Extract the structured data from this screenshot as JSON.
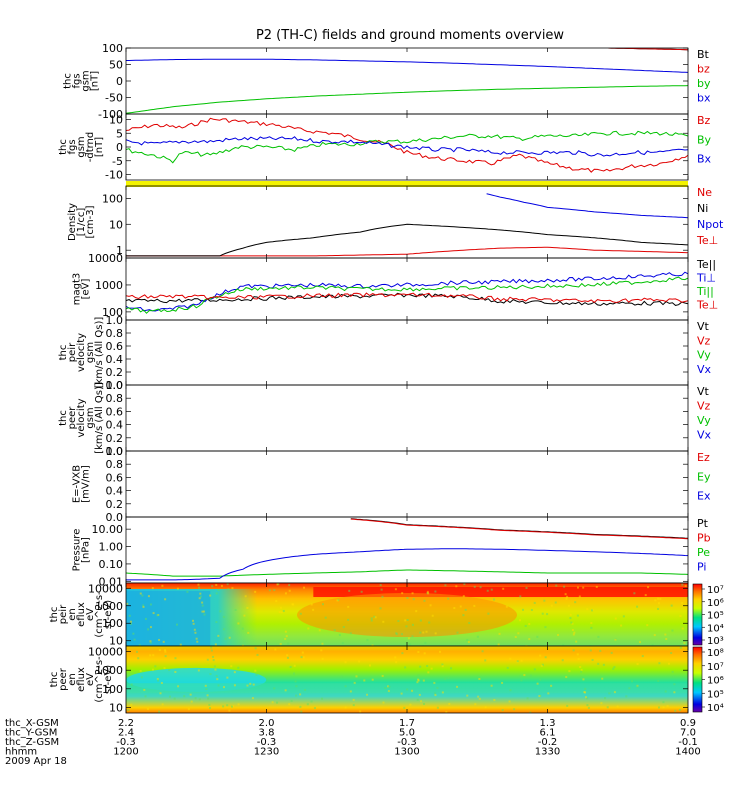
{
  "chart_data": {
    "type": "line",
    "title": "P2 (TH-C) fields and ground moments overview",
    "time_axis": {
      "rows": [
        {
          "label": "thc_X-GSM",
          "values": [
            "2.2",
            "2.0",
            "1.7",
            "1.3",
            "0.9"
          ]
        },
        {
          "label": "thc_Y-GSM",
          "values": [
            "2.4",
            "3.8",
            "5.0",
            "6.1",
            "7.0"
          ]
        },
        {
          "label": "thc_Z-GSM",
          "values": [
            "-0.3",
            "-0.3",
            "-0.3",
            "-0.2",
            "-0.1"
          ]
        },
        {
          "label": "hhmm",
          "values": [
            "1200",
            "1230",
            "1300",
            "1330",
            "1400"
          ]
        }
      ],
      "date": "2009 Apr 18"
    },
    "panels": [
      {
        "key": "fgs_gsm",
        "ylabel": [
          "thc",
          "fgs",
          "gsm",
          "[nT]"
        ],
        "ylim": [
          -100,
          100
        ],
        "log": false,
        "ticks": [
          "100",
          "50",
          "0",
          "-50",
          "-100"
        ],
        "tick_values": [
          100,
          50,
          0,
          -50,
          -100
        ],
        "series": [
          {
            "name": "Bt",
            "color": "#000000",
            "x": [
              1343,
              1353,
              1363,
              1373,
              1383,
              1393,
              1400
            ],
            "y": [
              100,
              97,
              94,
              91,
              89,
              87,
              86
            ]
          },
          {
            "name": "bz",
            "color": "#e00000",
            "x": [
              1343,
              1353,
              1363,
              1373,
              1383,
              1393,
              1400
            ],
            "y": [
              100,
              97,
              94,
              91,
              89,
              87,
              86
            ]
          },
          {
            "name": "by",
            "color": "#00c000",
            "x": [
              1200,
              1210,
              1220,
              1230,
              1240,
              1250,
              1300,
              1310,
              1320,
              1330,
              1340,
              1350,
              1400
            ],
            "y": [
              -98,
              -78,
              -64,
              -54,
              -46,
              -40,
              -34,
              -29,
              -25,
              -22,
              -19,
              -16,
              -14
            ]
          },
          {
            "name": "bx",
            "color": "#0000e0",
            "x": [
              1200,
              1210,
              1220,
              1230,
              1240,
              1250,
              1300,
              1310,
              1320,
              1330,
              1340,
              1350,
              1400
            ],
            "y": [
              62,
              65,
              66,
              66,
              64,
              61,
              58,
              54,
              49,
              44,
              38,
              32,
              26
            ]
          }
        ]
      },
      {
        "key": "fgs_gsm_dtrnd",
        "ylabel": [
          "thc",
          "fgs",
          "gsm",
          "-dtrnd",
          "[nT]"
        ],
        "ylim": [
          -12,
          12
        ],
        "log": false,
        "ticks": [
          "10",
          "5",
          "0",
          "-5",
          "-10"
        ],
        "tick_values": [
          10,
          5,
          0,
          -5,
          -10
        ],
        "series": [
          {
            "name": "Bz",
            "color": "#e00000",
            "x": [
              1200,
              1206,
              1212,
              1218,
              1220,
              1226,
              1232,
              1238,
              1244,
              1250,
              1256,
              1300,
              1306,
              1312,
              1318,
              1324,
              1330,
              1336,
              1342,
              1348,
              1354,
              1400
            ],
            "y": [
              6,
              8,
              7,
              10,
              10,
              9,
              8,
              6,
              5,
              3,
              1,
              -2,
              -4,
              -5,
              -6,
              -3,
              -6,
              -8,
              -9,
              -7,
              -6,
              -3
            ]
          },
          {
            "name": "By",
            "color": "#00c000",
            "x": [
              1200,
              1206,
              1210,
              1212,
              1218,
              1224,
              1230,
              1236,
              1242,
              1248,
              1254,
              1300,
              1306,
              1312,
              1318,
              1324,
              1330,
              1336,
              1342,
              1348,
              1354,
              1400
            ],
            "y": [
              -1,
              -3,
              -5,
              -2,
              -3,
              0,
              0,
              -1,
              1,
              1,
              2,
              2,
              3,
              4,
              4,
              3,
              4,
              4,
              5,
              5,
              5,
              4
            ]
          },
          {
            "name": "Bx",
            "color": "#0000e0",
            "x": [
              1200,
              1206,
              1212,
              1218,
              1224,
              1230,
              1236,
              1242,
              1248,
              1254,
              1300,
              1306,
              1312,
              1318,
              1324,
              1330,
              1336,
              1342,
              1348,
              1354,
              1400
            ],
            "y": [
              2,
              1,
              2,
              2,
              3,
              3,
              3,
              2,
              2,
              1,
              0,
              -1,
              -1,
              -2,
              -2,
              -2,
              -2,
              -3,
              -2,
              -2,
              -1
            ]
          }
        ]
      },
      {
        "key": "density",
        "ylabel": [
          "Density",
          "[1/cc]",
          "[cm-3]"
        ],
        "ylim": [
          0.5,
          300
        ],
        "log": true,
        "ticks": [
          "100",
          "10",
          "1"
        ],
        "tick_values": [
          100,
          10,
          1
        ],
        "series": [
          {
            "name": "Ne",
            "color": "#e00000",
            "x": [
              1200,
              1220,
              1240,
              1300,
              1320,
              1330,
              1340,
              1350,
              1400
            ],
            "y": [
              0.6,
              0.6,
              0.6,
              0.7,
              1.2,
              1.3,
              1.0,
              0.9,
              0.8
            ]
          },
          {
            "name": "Ni",
            "color": "#000000",
            "x": [
              1200,
              1220,
              1225,
              1230,
              1240,
              1250,
              1300,
              1310,
              1320,
              1330,
              1340,
              1350,
              1400
            ],
            "y": [
              0.6,
              0.6,
              1.2,
              2.0,
              3.0,
              5.0,
              10.0,
              8.0,
              6.0,
              4.0,
              3.0,
              2.0,
              1.6
            ]
          },
          {
            "name": "Npot",
            "color": "#0000e0",
            "x": [
              1317,
              1320,
              1325,
              1330,
              1340,
              1350,
              1400
            ],
            "y": [
              150,
              110,
              70,
              45,
              30,
              22,
              18
            ]
          },
          {
            "name": "Te⊥",
            "color": "#e00000",
            "x": [],
            "y": []
          }
        ]
      },
      {
        "key": "magt3",
        "ylabel": [
          "magt3",
          "[eV]"
        ],
        "ylim": [
          50,
          10000
        ],
        "log": true,
        "ticks": [
          "10000",
          "1000",
          "100"
        ],
        "tick_values": [
          10000,
          1000,
          100
        ],
        "series": [
          {
            "name": "Te||",
            "color": "#000000",
            "x": [
              1200,
              1210,
              1220,
              1230,
              1240,
              1250,
              1300,
              1310,
              1320,
              1330,
              1340,
              1350,
              1400
            ],
            "y": [
              250,
              260,
              280,
              320,
              360,
              380,
              420,
              380,
              250,
              220,
              200,
              210,
              200
            ]
          },
          {
            "name": "Ti⊥",
            "color": "#0000e0",
            "x": [
              1200,
              1205,
              1210,
              1215,
              1220,
              1225,
              1230,
              1240,
              1250,
              1300,
              1310,
              1320,
              1330,
              1340,
              1350,
              1400
            ],
            "y": [
              150,
              110,
              130,
              180,
              450,
              900,
              900,
              1000,
              900,
              1000,
              1200,
              1300,
              1500,
              1700,
              2100,
              2600
            ]
          },
          {
            "name": "Ti||",
            "color": "#00c000",
            "x": [
              1200,
              1205,
              1210,
              1215,
              1220,
              1225,
              1230,
              1240,
              1250,
              1300,
              1310,
              1320,
              1330,
              1340,
              1350,
              1400
            ],
            "y": [
              130,
              100,
              120,
              160,
              400,
              700,
              750,
              800,
              700,
              700,
              750,
              800,
              900,
              1000,
              1300,
              1800
            ]
          },
          {
            "name": "Te⊥",
            "color": "#e00000",
            "x": [
              1200,
              1210,
              1220,
              1230,
              1240,
              1250,
              1300,
              1310,
              1320,
              1330,
              1340,
              1350,
              1400
            ],
            "y": [
              350,
              380,
              330,
              360,
              400,
              420,
              430,
              400,
              300,
              280,
              250,
              280,
              260
            ]
          }
        ]
      },
      {
        "key": "peir_velocity",
        "ylabel": [
          "thc",
          "peir",
          "velocity",
          "gsm",
          "[km/s (All Qs)]"
        ],
        "ylim": [
          0,
          1
        ],
        "log": false,
        "ticks": [
          "1.0",
          "0.8",
          "0.6",
          "0.4",
          "0.2",
          "0.0"
        ],
        "tick_values": [
          1,
          0.8,
          0.6,
          0.4,
          0.2,
          0
        ],
        "series": [
          {
            "name": "Vt",
            "color": "#000000",
            "x": [],
            "y": []
          },
          {
            "name": "Vz",
            "color": "#e00000",
            "x": [],
            "y": []
          },
          {
            "name": "Vy",
            "color": "#00c000",
            "x": [],
            "y": []
          },
          {
            "name": "Vx",
            "color": "#0000e0",
            "x": [],
            "y": []
          }
        ]
      },
      {
        "key": "peer_velocity",
        "ylabel": [
          "thc",
          "peer",
          "velocity",
          "gsm",
          "[km/s (All Qs)]"
        ],
        "ylim": [
          0,
          1
        ],
        "log": false,
        "ticks": [
          "1.0",
          "0.8",
          "0.6",
          "0.4",
          "0.2",
          "0.0"
        ],
        "tick_values": [
          1,
          0.8,
          0.6,
          0.4,
          0.2,
          0
        ],
        "series": [
          {
            "name": "Vt",
            "color": "#000000",
            "x": [],
            "y": []
          },
          {
            "name": "Vz",
            "color": "#e00000",
            "x": [],
            "y": []
          },
          {
            "name": "Vy",
            "color": "#00c000",
            "x": [],
            "y": []
          },
          {
            "name": "Vx",
            "color": "#0000e0",
            "x": [],
            "y": []
          }
        ]
      },
      {
        "key": "efield",
        "ylabel": [
          "E=-VXB",
          "[mV/m]"
        ],
        "ylim": [
          0,
          1
        ],
        "log": false,
        "ticks": [
          "1.0",
          "0.8",
          "0.6",
          "0.4",
          "0.2",
          "0.0"
        ],
        "tick_values": [
          1,
          0.8,
          0.6,
          0.4,
          0.2,
          0
        ],
        "series": [
          {
            "name": "Ez",
            "color": "#e00000",
            "x": [],
            "y": []
          },
          {
            "name": "Ey",
            "color": "#00c000",
            "x": [],
            "y": []
          },
          {
            "name": "Ex",
            "color": "#0000e0",
            "x": [],
            "y": []
          }
        ]
      },
      {
        "key": "pressure",
        "ylabel": [
          "Pressure",
          "[nPa]"
        ],
        "ylim": [
          0.008,
          50
        ],
        "log": true,
        "ticks": [
          "10.00",
          "1.00",
          "0.10",
          "0.01"
        ],
        "tick_values": [
          10,
          1,
          0.1,
          0.01
        ],
        "series": [
          {
            "name": "Pt",
            "color": "#000000",
            "x": [
              1248,
              1300,
              1320,
              1340,
              1400
            ],
            "y": [
              40,
              18,
              9,
              5,
              3
            ]
          },
          {
            "name": "Pb",
            "color": "#e00000",
            "x": [
              1248,
              1300,
              1320,
              1340,
              1400
            ],
            "y": [
              38,
              17,
              8.5,
              4.7,
              2.8
            ]
          },
          {
            "name": "Pe",
            "color": "#00c000",
            "x": [
              1200,
              1210,
              1220,
              1230,
              1240,
              1250,
              1300,
              1310,
              1320,
              1330,
              1340,
              1350,
              1400
            ],
            "y": [
              0.03,
              0.02,
              0.02,
              0.025,
              0.03,
              0.035,
              0.045,
              0.04,
              0.035,
              0.03,
              0.03,
              0.03,
              0.025
            ]
          },
          {
            "name": "Pi",
            "color": "#0000e0",
            "x": [
              1200,
              1210,
              1215,
              1220,
              1225,
              1230,
              1240,
              1250,
              1300,
              1310,
              1320,
              1330,
              1340,
              1350,
              1400
            ],
            "y": [
              0.012,
              0.012,
              0.013,
              0.015,
              0.05,
              0.15,
              0.35,
              0.5,
              0.7,
              0.75,
              0.7,
              0.6,
              0.5,
              0.4,
              0.3
            ]
          }
        ]
      },
      {
        "key": "peir_en_eflux",
        "type": "heatmap",
        "ylabel": [
          "thc",
          "peir",
          "en",
          "eflux",
          "eV",
          "(cm^2-s-",
          "sr-eV)"
        ],
        "ylim": [
          5,
          20000
        ],
        "log": true,
        "ticks": [
          "10000",
          "1000",
          "100",
          "10"
        ],
        "tick_values": [
          10000,
          1000,
          100,
          10
        ],
        "colorbar": {
          "min_exp": 3,
          "max_exp": 7,
          "labels": [
            "10³",
            "10⁴",
            "10⁵",
            "10⁶",
            "10⁷"
          ]
        }
      },
      {
        "key": "peer_en_eflux",
        "type": "heatmap",
        "ylabel": [
          "thc",
          "peer",
          "en",
          "eflux",
          "eV",
          "(cm^2-s-",
          "sr-eV)"
        ],
        "ylim": [
          5,
          20000
        ],
        "log": true,
        "ticks": [
          "10000",
          "1000",
          "100",
          "10"
        ],
        "tick_values": [
          10000,
          1000,
          100,
          10
        ],
        "colorbar": {
          "min_exp": 4,
          "max_exp": 8,
          "labels": [
            "10⁴",
            "10⁵",
            "10⁶",
            "10⁷",
            "10⁸"
          ]
        }
      }
    ]
  }
}
